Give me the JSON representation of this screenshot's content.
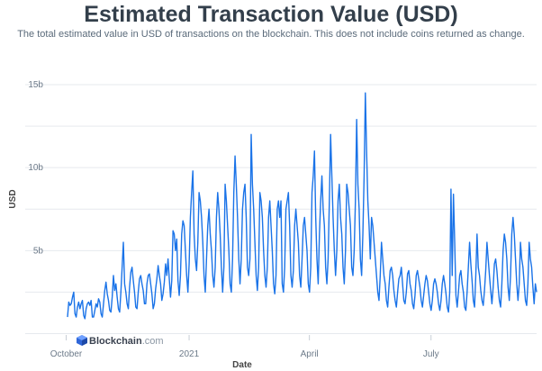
{
  "title": "Estimated Transaction Value (USD)",
  "subtitle": "The total estimated value in USD of transactions on the blockchain. This does not include coins returned as change.",
  "watermark": {
    "brand": "Blockchain",
    "suffix": ".com"
  },
  "colors": {
    "line": "#1a73e8",
    "grid": "#e6e9ee",
    "text": "#333f4b"
  },
  "chart_data": {
    "type": "line",
    "title": "Estimated Transaction Value (USD)",
    "xlabel": "Date",
    "ylabel": "USD",
    "ylim": [
      0,
      17000000000
    ],
    "yticks": [
      {
        "value": 5000000000,
        "label": "5b"
      },
      {
        "value": 10000000000,
        "label": "10b"
      },
      {
        "value": 15000000000,
        "label": "15b"
      }
    ],
    "xticks": [
      {
        "date": "2020-10-01",
        "label": "October"
      },
      {
        "date": "2021-01-01",
        "label": "2021"
      },
      {
        "date": "2021-04-01",
        "label": "April"
      },
      {
        "date": "2021-07-01",
        "label": "July"
      }
    ],
    "x_start": "2020-09-30",
    "x_end": "2021-09-18",
    "grid": true,
    "series": [
      {
        "values": [
          1.0,
          1.9,
          1.7,
          1.8,
          2.2,
          2.5,
          1.2,
          1.0,
          1.6,
          1.9,
          1.5,
          1.8,
          2.0,
          1.1,
          0.9,
          1.5,
          1.8,
          1.9,
          1.7,
          2.0,
          1.0,
          1.0,
          1.4,
          1.8,
          1.6,
          2.1,
          1.9,
          1.2,
          1.0,
          1.8,
          2.6,
          3.1,
          2.4,
          2.0,
          1.4,
          1.3,
          2.2,
          3.5,
          2.6,
          3.0,
          2.2,
          1.5,
          1.3,
          2.5,
          4.0,
          5.5,
          3.0,
          2.5,
          1.8,
          1.5,
          2.8,
          3.7,
          4.0,
          3.2,
          2.5,
          1.6,
          1.5,
          2.5,
          3.3,
          3.5,
          3.0,
          2.6,
          1.8,
          1.8,
          3.0,
          3.5,
          3.6,
          3.0,
          2.4,
          1.5,
          1.8,
          2.7,
          3.3,
          4.1,
          3.5,
          3.0,
          2.0,
          2.4,
          3.1,
          4.2,
          3.5,
          4.5,
          3.3,
          2.2,
          3.2,
          6.2,
          6.0,
          5.0,
          5.7,
          3.2,
          2.3,
          3.5,
          6.0,
          6.8,
          6.5,
          5.0,
          3.5,
          2.5,
          4.2,
          7.0,
          8.5,
          9.8,
          6.0,
          4.5,
          3.8,
          5.5,
          8.5,
          8.0,
          7.0,
          5.5,
          3.5,
          2.5,
          4.5,
          6.5,
          7.5,
          6.0,
          5.0,
          3.5,
          2.8,
          4.0,
          7.0,
          8.5,
          7.5,
          6.0,
          4.0,
          2.5,
          4.0,
          9.0,
          8.0,
          6.5,
          5.0,
          3.0,
          2.5,
          4.5,
          8.5,
          10.7,
          9.0,
          7.0,
          4.5,
          3.0,
          4.5,
          7.5,
          8.5,
          9.0,
          7.0,
          4.0,
          3.5,
          4.5,
          12.0,
          9.0,
          7.5,
          5.5,
          3.5,
          2.6,
          4.0,
          8.5,
          8.0,
          7.0,
          5.0,
          3.5,
          2.8,
          4.0,
          7.0,
          8.0,
          6.5,
          5.0,
          3.0,
          2.4,
          3.5,
          7.5,
          8.0,
          7.0,
          8.0,
          3.0,
          2.5,
          4.0,
          7.5,
          8.0,
          8.5,
          6.5,
          3.5,
          2.8,
          3.8,
          6.5,
          7.5,
          6.5,
          5.5,
          3.5,
          2.8,
          4.5,
          6.5,
          7.0,
          6.0,
          5.0,
          3.0,
          2.5,
          4.0,
          8.5,
          9.5,
          11.0,
          7.0,
          4.5,
          3.0,
          6.0,
          8.0,
          9.5,
          7.5,
          6.5,
          4.0,
          3.0,
          4.5,
          8.0,
          12.0,
          9.5,
          7.0,
          5.0,
          3.5,
          5.0,
          8.0,
          9.0,
          7.0,
          6.0,
          4.0,
          3.0,
          5.0,
          9.0,
          8.5,
          7.5,
          6.5,
          4.0,
          3.5,
          5.0,
          8.0,
          12.9,
          9.0,
          7.5,
          4.5,
          3.5,
          6.0,
          9.5,
          14.5,
          11.0,
          8.0,
          6.5,
          4.5,
          7.0,
          6.5,
          5.5,
          4.5,
          3.5,
          2.5,
          2.0,
          3.5,
          5.5,
          4.5,
          3.5,
          3.0,
          2.0,
          1.6,
          2.8,
          3.8,
          4.0,
          3.5,
          2.6,
          2.0,
          1.6,
          2.5,
          3.3,
          3.5,
          4.0,
          3.0,
          2.0,
          1.8,
          2.5,
          3.6,
          3.8,
          3.0,
          2.6,
          1.8,
          1.5,
          2.3,
          3.5,
          3.8,
          3.3,
          2.8,
          2.0,
          1.6,
          2.3,
          3.0,
          3.5,
          3.2,
          2.5,
          1.8,
          1.4,
          2.0,
          3.0,
          3.3,
          3.0,
          2.5,
          1.8,
          1.4,
          2.0,
          3.0,
          3.5,
          3.0,
          2.4,
          1.6,
          1.3,
          2.5,
          8.7,
          3.5,
          8.4,
          5.5,
          2.3,
          1.6,
          2.5,
          3.5,
          3.8,
          3.0,
          2.5,
          1.6,
          1.4,
          2.5,
          4.0,
          5.5,
          4.2,
          3.2,
          2.0,
          1.6,
          3.5,
          6.0,
          4.0,
          3.5,
          2.6,
          2.0,
          1.7,
          2.6,
          3.8,
          5.5,
          4.5,
          3.5,
          2.6,
          1.8,
          2.8,
          4.2,
          4.5,
          3.8,
          2.8,
          2.0,
          1.6,
          3.0,
          5.0,
          6.0,
          5.5,
          4.5,
          2.8,
          2.0,
          3.5,
          6.0,
          7.0,
          6.0,
          4.5,
          3.0,
          2.0,
          3.0,
          5.5,
          4.5,
          4.0,
          3.0,
          2.0,
          1.7,
          3.0,
          5.5,
          4.5,
          4.0,
          2.8,
          1.8,
          3.0,
          2.5
        ],
        "unit": "billion USD, daily"
      }
    ]
  }
}
